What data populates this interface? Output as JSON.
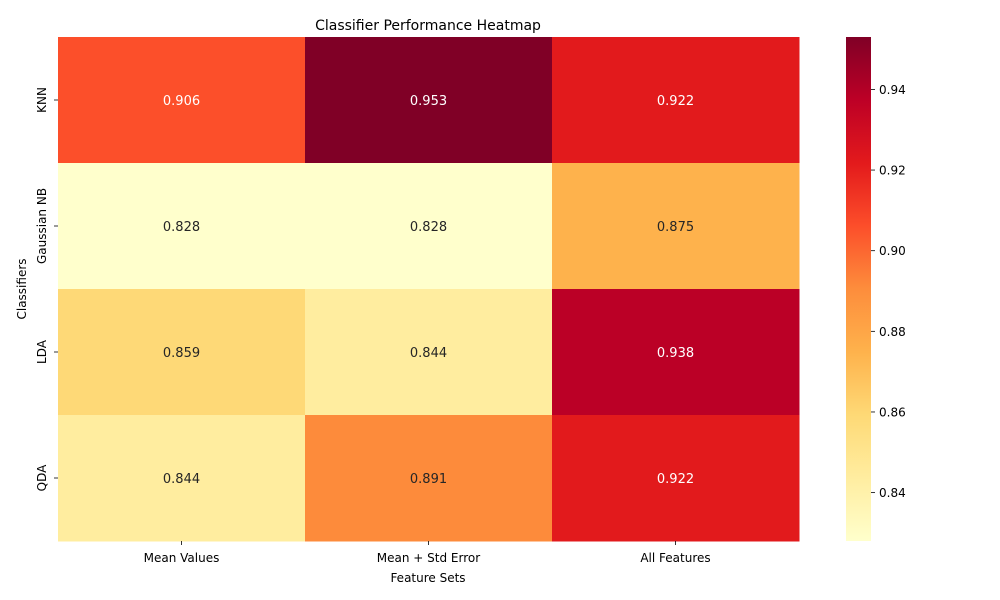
{
  "chart_data": {
    "type": "heatmap",
    "title": "Classifier Performance Heatmap",
    "xlabel": "Feature Sets",
    "ylabel": "Classifiers",
    "x_categories": [
      "Mean Values",
      "Mean + Std Error",
      "All Features"
    ],
    "y_categories": [
      "KNN",
      "Gaussian NB",
      "LDA",
      "QDA"
    ],
    "values": [
      [
        0.906,
        0.953,
        0.922
      ],
      [
        0.828,
        0.828,
        0.875
      ],
      [
        0.859,
        0.844,
        0.938
      ],
      [
        0.844,
        0.891,
        0.922
      ]
    ],
    "value_range": [
      0.828,
      0.953
    ],
    "colormap": "YlOrRd",
    "colorbar_ticks": [
      "0.84",
      "0.86",
      "0.88",
      "0.90",
      "0.92",
      "0.94"
    ],
    "grid": false,
    "legend": "colorbar-right"
  }
}
